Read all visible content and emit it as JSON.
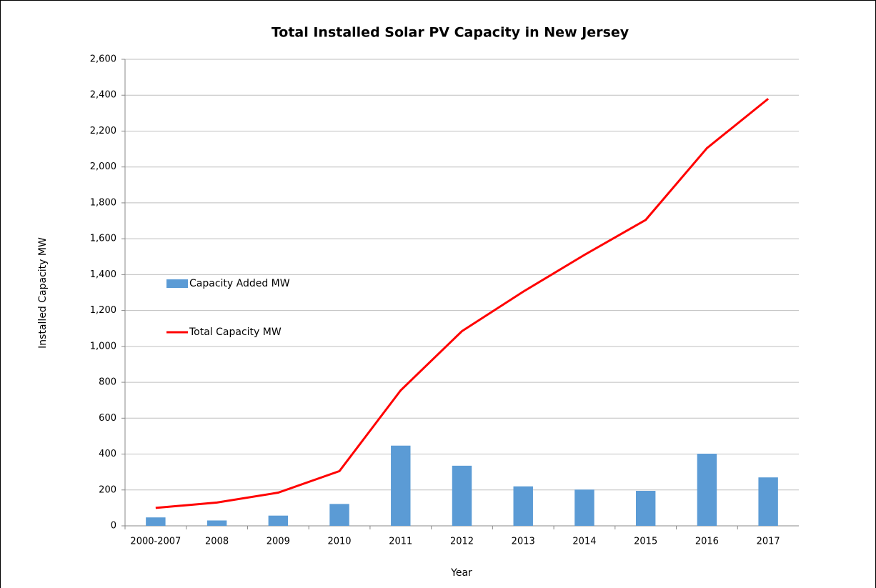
{
  "chart_data": {
    "type": "combo",
    "title": "Total Installed Solar PV Capacity in New Jersey",
    "x_label": "Year",
    "y_label": "Installed Capacity MW",
    "categories": [
      "2000-2007",
      "2008",
      "2009",
      "2010",
      "2011",
      "2012",
      "2013",
      "2014",
      "2015",
      "2016",
      "2017"
    ],
    "series": [
      {
        "name": "Capacity Added MW",
        "type": "bar",
        "color": "#5b9bd5",
        "values": [
          47,
          30,
          57,
          122,
          447,
          335,
          220,
          202,
          195,
          402,
          270
        ]
      },
      {
        "name": "Total Capacity MW",
        "type": "line",
        "color": "#ff0000",
        "values": [
          100,
          130,
          185,
          305,
          755,
          1085,
          1305,
          1510,
          1705,
          2105,
          2380
        ]
      }
    ],
    "ylim": [
      0,
      2600
    ],
    "yticks": [
      0,
      200,
      400,
      600,
      800,
      {
        "value": 1000,
        "label": "1,000"
      },
      {
        "value": 1200,
        "label": "1,200"
      },
      {
        "value": 1400,
        "label": "1,400"
      },
      {
        "value": 1600,
        "label": "1,600"
      },
      {
        "value": 1800,
        "label": "1,800"
      },
      {
        "value": 2000,
        "label": "2,000"
      },
      {
        "value": 2200,
        "label": "2,200"
      },
      {
        "value": 2400,
        "label": "2,400"
      },
      {
        "value": 2600,
        "label": "2,600"
      }
    ],
    "grid": true,
    "legend": "left"
  }
}
